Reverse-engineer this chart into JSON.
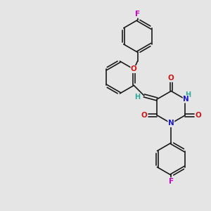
{
  "bg_color": "#e5e5e5",
  "bond_color": "#1a1a1a",
  "N_color": "#1a1acc",
  "O_color": "#cc1a1a",
  "F_color": "#cc00cc",
  "H_color": "#2aaa9a",
  "figsize": [
    3.0,
    3.0
  ],
  "dpi": 100,
  "xlim": [
    0,
    10
  ],
  "ylim": [
    0,
    10
  ]
}
